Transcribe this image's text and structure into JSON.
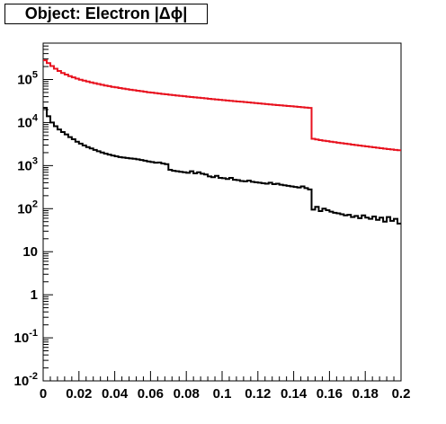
{
  "chart_data": {
    "type": "line",
    "title": "Object: Electron |Δϕ|",
    "xlabel": "",
    "ylabel": "",
    "xlim": [
      0,
      0.2
    ],
    "ylim": [
      0.01,
      700000
    ],
    "y_log": true,
    "grid": false,
    "legend": "none",
    "x_tick_values": [
      0,
      0.02,
      0.04,
      0.06,
      0.08,
      0.1,
      0.12,
      0.14,
      0.16,
      0.18,
      0.2
    ],
    "x_tick_labels": [
      "0",
      "0.02",
      "0.04",
      "0.06",
      "0.08",
      "0.1",
      "0.12",
      "0.14",
      "0.16",
      "0.18",
      "0.2"
    ],
    "y_ticks": [
      {
        "value": 0.01,
        "base": "10",
        "exp": "-2"
      },
      {
        "value": 0.1,
        "base": "10",
        "exp": "-1"
      },
      {
        "value": 1,
        "base": "1",
        "exp": ""
      },
      {
        "value": 10,
        "base": "10",
        "exp": ""
      },
      {
        "value": 100,
        "base": "10",
        "exp": "2"
      },
      {
        "value": 1000,
        "base": "10",
        "exp": "3"
      },
      {
        "value": 10000,
        "base": "10",
        "exp": "4"
      },
      {
        "value": 100000,
        "base": "10",
        "exp": "5"
      }
    ],
    "bin_width": 0.002,
    "series": [
      {
        "color": "#e8121f",
        "values": [
          280000,
          240000,
          205000,
          178000,
          158000,
          142000,
          130000,
          120000,
          112000,
          105000,
          99000,
          94000,
          89500,
          85500,
          82000,
          78500,
          75500,
          72500,
          70000,
          67500,
          65500,
          63500,
          61500,
          59500,
          58000,
          56500,
          55000,
          53500,
          52000,
          50500,
          49500,
          48300,
          47200,
          46200,
          45200,
          44200,
          43300,
          42400,
          41600,
          40800,
          40000,
          39200,
          38500,
          37800,
          37100,
          36400,
          35700,
          35000,
          34400,
          33800,
          33200,
          32600,
          32000,
          31400,
          30900,
          30400,
          29900,
          29400,
          28900,
          28400,
          27900,
          27400,
          26900,
          26400,
          25900,
          25500,
          25100,
          24700,
          24300,
          23900,
          23500,
          23100,
          22700,
          22300,
          21900,
          4200,
          4050,
          3900,
          3800,
          3700,
          3600,
          3500,
          3400,
          3320,
          3240,
          3160,
          3080,
          3000,
          2930,
          2860,
          2790,
          2720,
          2660,
          2600,
          2540,
          2480,
          2420,
          2370,
          2320,
          2270
        ]
      },
      {
        "color": "#000000",
        "values": [
          22000,
          14000,
          10000,
          8200,
          6900,
          6000,
          5300,
          4600,
          4100,
          3600,
          3250,
          2950,
          2700,
          2500,
          2320,
          2150,
          2020,
          1900,
          1800,
          1720,
          1640,
          1580,
          1540,
          1500,
          1470,
          1440,
          1400,
          1350,
          1300,
          1250,
          1210,
          1170,
          1180,
          1120,
          1080,
          800,
          760,
          740,
          720,
          700,
          680,
          740,
          660,
          700,
          650,
          620,
          560,
          540,
          580,
          520,
          510,
          490,
          520,
          470,
          460,
          440,
          430,
          450,
          420,
          410,
          400,
          390,
          380,
          400,
          370,
          380,
          360,
          350,
          340,
          330,
          320,
          310,
          330,
          300,
          280,
          95,
          110,
          88,
          100,
          92,
          85,
          80,
          78,
          74,
          70,
          72,
          64,
          68,
          60,
          70,
          62,
          58,
          66,
          55,
          62,
          50,
          64,
          52,
          58,
          45
        ]
      }
    ]
  }
}
